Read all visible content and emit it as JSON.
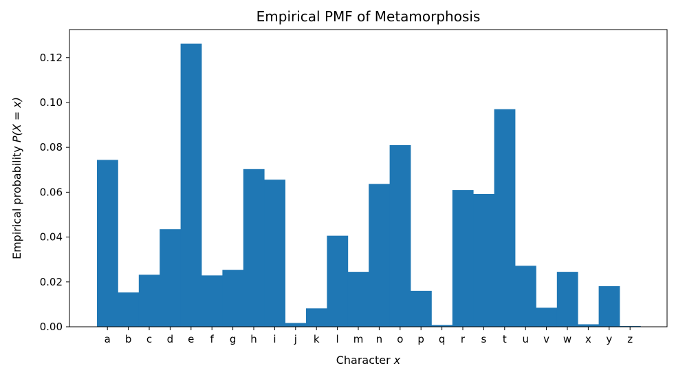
{
  "chart_data": {
    "type": "bar",
    "title": "Empirical PMF of Metamorphosis",
    "xlabel_text": "Character ",
    "xlabel_var": "x",
    "ylabel_text": "Empirical probability ",
    "ylabel_math": "P(X = x)",
    "categories": [
      "a",
      "b",
      "c",
      "d",
      "e",
      "f",
      "g",
      "h",
      "i",
      "j",
      "k",
      "l",
      "m",
      "n",
      "o",
      "p",
      "q",
      "r",
      "s",
      "t",
      "u",
      "v",
      "w",
      "x",
      "y",
      "z"
    ],
    "values": [
      0.0744,
      0.0153,
      0.0232,
      0.0435,
      0.1262,
      0.0229,
      0.0254,
      0.0703,
      0.0656,
      0.0017,
      0.0082,
      0.0406,
      0.0245,
      0.0637,
      0.081,
      0.016,
      0.0008,
      0.061,
      0.0592,
      0.097,
      0.0272,
      0.0085,
      0.0245,
      0.0011,
      0.0181,
      0.0003
    ],
    "ylim": [
      0,
      0.1325
    ],
    "yticks": [
      "0.00",
      "0.02",
      "0.04",
      "0.06",
      "0.08",
      "0.10",
      "0.12"
    ],
    "bar_color": "#1f77b4",
    "grid": false
  }
}
